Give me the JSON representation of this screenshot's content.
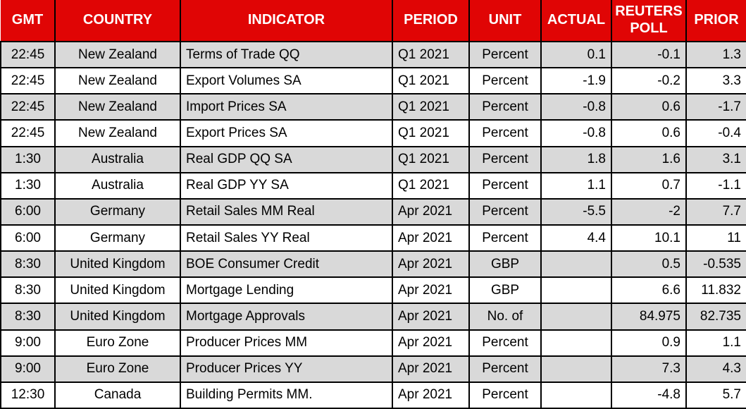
{
  "table": {
    "columns": [
      {
        "key": "gmt",
        "label": "GMT"
      },
      {
        "key": "country",
        "label": "COUNTRY"
      },
      {
        "key": "indicator",
        "label": "INDICATOR"
      },
      {
        "key": "period",
        "label": "PERIOD"
      },
      {
        "key": "unit",
        "label": "UNIT"
      },
      {
        "key": "actual",
        "label": "ACTUAL"
      },
      {
        "key": "reuters_poll",
        "label": "REUTERS POLL"
      },
      {
        "key": "prior",
        "label": "PRIOR"
      }
    ],
    "rows": [
      {
        "gmt": "22:45",
        "country": "New Zealand",
        "indicator": "Terms of Trade QQ",
        "period": "Q1 2021",
        "unit": "Percent",
        "actual": "0.1",
        "reuters_poll": "-0.1",
        "prior": "1.3"
      },
      {
        "gmt": "22:45",
        "country": "New Zealand",
        "indicator": "Export Volumes SA",
        "period": "Q1 2021",
        "unit": "Percent",
        "actual": "-1.9",
        "reuters_poll": "-0.2",
        "prior": "3.3"
      },
      {
        "gmt": "22:45",
        "country": "New Zealand",
        "indicator": "Import Prices SA",
        "period": "Q1 2021",
        "unit": "Percent",
        "actual": "-0.8",
        "reuters_poll": "0.6",
        "prior": "-1.7"
      },
      {
        "gmt": "22:45",
        "country": "New Zealand",
        "indicator": "Export Prices SA",
        "period": "Q1 2021",
        "unit": "Percent",
        "actual": "-0.8",
        "reuters_poll": "0.6",
        "prior": "-0.4"
      },
      {
        "gmt": "1:30",
        "country": "Australia",
        "indicator": "Real GDP QQ SA",
        "period": "Q1 2021",
        "unit": "Percent",
        "actual": "1.8",
        "reuters_poll": "1.6",
        "prior": "3.1"
      },
      {
        "gmt": "1:30",
        "country": "Australia",
        "indicator": "Real GDP YY SA",
        "period": "Q1 2021",
        "unit": "Percent",
        "actual": "1.1",
        "reuters_poll": "0.7",
        "prior": "-1.1"
      },
      {
        "gmt": "6:00",
        "country": "Germany",
        "indicator": "Retail Sales MM Real",
        "period": "Apr 2021",
        "unit": "Percent",
        "actual": "-5.5",
        "reuters_poll": "-2",
        "prior": "7.7"
      },
      {
        "gmt": "6:00",
        "country": "Germany",
        "indicator": "Retail Sales YY Real",
        "period": "Apr 2021",
        "unit": "Percent",
        "actual": "4.4",
        "reuters_poll": "10.1",
        "prior": "11"
      },
      {
        "gmt": "8:30",
        "country": "United Kingdom",
        "indicator": "BOE Consumer Credit",
        "period": "Apr 2021",
        "unit": "GBP",
        "actual": "",
        "reuters_poll": "0.5",
        "prior": "-0.535"
      },
      {
        "gmt": "8:30",
        "country": "United Kingdom",
        "indicator": "Mortgage Lending",
        "period": "Apr 2021",
        "unit": "GBP",
        "actual": "",
        "reuters_poll": "6.6",
        "prior": "11.832"
      },
      {
        "gmt": "8:30",
        "country": "United Kingdom",
        "indicator": "Mortgage Approvals",
        "period": "Apr 2021",
        "unit": "No. of",
        "actual": "",
        "reuters_poll": "84.975",
        "prior": "82.735"
      },
      {
        "gmt": "9:00",
        "country": "Euro Zone",
        "indicator": "Producer Prices MM",
        "period": "Apr 2021",
        "unit": "Percent",
        "actual": "",
        "reuters_poll": "0.9",
        "prior": "1.1"
      },
      {
        "gmt": "9:00",
        "country": "Euro Zone",
        "indicator": "Producer Prices YY",
        "period": "Apr 2021",
        "unit": "Percent",
        "actual": "",
        "reuters_poll": "7.3",
        "prior": "4.3"
      },
      {
        "gmt": "12:30",
        "country": "Canada",
        "indicator": "Building Permits MM.",
        "period": "Apr 2021",
        "unit": "Percent",
        "actual": "",
        "reuters_poll": "-4.8",
        "prior": "5.7"
      }
    ]
  },
  "colors": {
    "header_bg": "#e00505",
    "header_text": "#ffffff",
    "row_shaded_bg": "#d9d9d9",
    "row_plain_bg": "#ffffff",
    "border": "#000000",
    "body_text": "#000000"
  }
}
